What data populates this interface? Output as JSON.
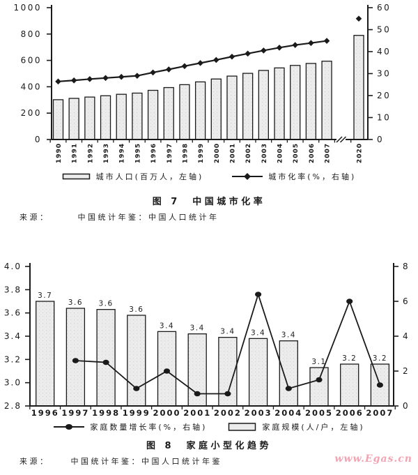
{
  "colors": {
    "ink": "#1a1a1a",
    "bar_fill": "#ececec",
    "bar_dot": "#d4d4d4",
    "watermark_pink": "#f2a4b2",
    "background": "#ffffff"
  },
  "figure7": {
    "legend": [
      {
        "marker": "bar-swatch",
        "label": "城市人口(百万人，左轴)"
      },
      {
        "marker": "diamond-line",
        "label": "城市化率(%，右轴)"
      }
    ],
    "caption": "图 7　中国城市化率",
    "source_label": "来源：",
    "source_text": "中国统计年鉴：中国人口统计年"
  },
  "figure8": {
    "legend": [
      {
        "marker": "dot-line",
        "label": "家庭数量增长率(%，右轴)"
      },
      {
        "marker": "bar-swatch",
        "label": "家庭规模(人/户，左轴)"
      }
    ],
    "caption": "图 8　家庭小型化趋势",
    "source_label": "来源：",
    "source_text": "中国统计年鉴：中国人口统计年鉴"
  },
  "watermark": "www.Egas.cn",
  "chart_data": [
    {
      "type": "bar",
      "title": "图 7 中国城市化率",
      "categories": [
        "1990",
        "1991",
        "1992",
        "1993",
        "1994",
        "1995",
        "1996",
        "1997",
        "1998",
        "1999",
        "2000",
        "2001",
        "2002",
        "2003",
        "2004",
        "2005",
        "2006",
        "2007",
        "2020"
      ],
      "series": [
        {
          "name": "城市人口(百万人，左轴)",
          "type": "bar",
          "axis": "left",
          "values": [
            302,
            312,
            322,
            332,
            343,
            352,
            373,
            394,
            416,
            437,
            459,
            481,
            502,
            524,
            543,
            562,
            577,
            594,
            790
          ]
        },
        {
          "name": "城市化率(%，右轴)",
          "type": "line",
          "axis": "right",
          "marker": "diamond",
          "values": [
            26.4,
            26.9,
            27.5,
            28.0,
            28.5,
            29.0,
            30.5,
            31.9,
            33.4,
            34.8,
            36.2,
            37.7,
            39.1,
            40.5,
            41.8,
            43.0,
            43.9,
            44.9,
            55.0
          ],
          "detached_last_point": true
        }
      ],
      "left_axis": {
        "min": 0,
        "max": 1000,
        "step": 200
      },
      "right_axis": {
        "min": 0,
        "max": 60,
        "step": 10
      },
      "x_axis_break_before_last_category": true,
      "grid": false,
      "legend_position": "bottom"
    },
    {
      "type": "bar",
      "title": "图 8 家庭小型化趋势",
      "categories": [
        "1996",
        "1997",
        "1998",
        "1999",
        "2000",
        "2001",
        "2002",
        "2003",
        "2004",
        "2005",
        "2006",
        "2007"
      ],
      "series": [
        {
          "name": "家庭规模(人/户，左轴)",
          "type": "bar",
          "axis": "left",
          "values": [
            3.7,
            3.64,
            3.63,
            3.58,
            3.44,
            3.42,
            3.39,
            3.38,
            3.36,
            3.13,
            3.16,
            3.16
          ],
          "labels": [
            "3.7",
            "3.6",
            "3.6",
            "3.6",
            "3.4",
            "3.4",
            "3.4",
            "3.4",
            "3.4",
            "3.1",
            "3.2",
            "3.2"
          ]
        },
        {
          "name": "家庭数量增长率(%，右轴)",
          "type": "line",
          "axis": "right",
          "marker": "circle",
          "values": [
            null,
            2.6,
            2.5,
            1.0,
            2.0,
            0.7,
            0.7,
            6.4,
            1.0,
            1.5,
            6.0,
            1.2
          ]
        }
      ],
      "left_axis": {
        "min": 2.8,
        "max": 4.0,
        "step": 0.2
      },
      "right_axis": {
        "min": 0,
        "max": 8,
        "step": 2
      },
      "grid": false,
      "legend_position": "bottom"
    }
  ]
}
